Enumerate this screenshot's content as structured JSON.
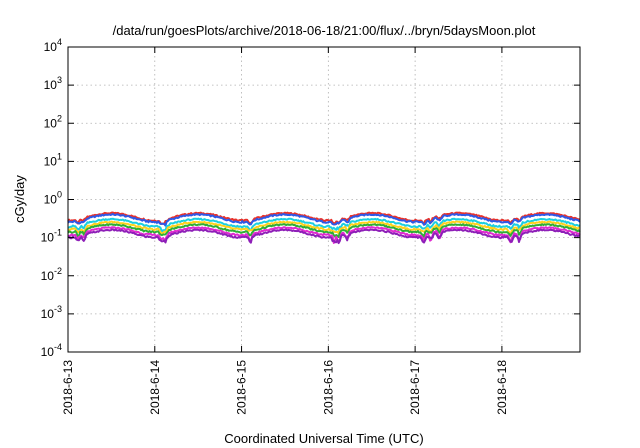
{
  "chart_data": {
    "type": "line",
    "title": "/data/run/goesPlots/archive/2018-06-18/21:00/flux/../bryn/5daysMoon.plot",
    "xlabel": "Coordinated Universal Time (UTC)",
    "ylabel": "cGy/day",
    "yscale": "log",
    "ylim": [
      0.0001,
      10000
    ],
    "xlim": [
      0,
      5.9
    ],
    "grid": true,
    "y_ticks": [
      {
        "value": 0.0001,
        "base": "10",
        "exp": "-4"
      },
      {
        "value": 0.001,
        "base": "10",
        "exp": "-3"
      },
      {
        "value": 0.01,
        "base": "10",
        "exp": "-2"
      },
      {
        "value": 0.1,
        "base": "10",
        "exp": "-1"
      },
      {
        "value": 1,
        "base": "10",
        "exp": "0"
      },
      {
        "value": 10,
        "base": "10",
        "exp": "1"
      },
      {
        "value": 100,
        "base": "10",
        "exp": "2"
      },
      {
        "value": 1000,
        "base": "10",
        "exp": "3"
      },
      {
        "value": 10000,
        "base": "10",
        "exp": "4"
      }
    ],
    "x_ticks": [
      {
        "value": 0,
        "label": "2018-6-13"
      },
      {
        "value": 1,
        "label": "2018-6-14"
      },
      {
        "value": 2,
        "label": "2018-6-15"
      },
      {
        "value": 3,
        "label": "2018-6-16"
      },
      {
        "value": 4,
        "label": "2018-6-17"
      },
      {
        "value": 5,
        "label": "2018-6-18"
      }
    ],
    "series": [
      {
        "color": "#e8322b",
        "base": 0.36,
        "spread": 0.22
      },
      {
        "color": "#2f58e6",
        "base": 0.33,
        "spread": 0.22
      },
      {
        "color": "#1ccfe0",
        "base": 0.25,
        "spread": 0.24
      },
      {
        "color": "#ffd21c",
        "base": 0.21,
        "spread": 0.26
      },
      {
        "color": "#2fae35",
        "base": 0.18,
        "spread": 0.28
      },
      {
        "color": "#e02bd0",
        "base": 0.15,
        "spread": 0.4
      },
      {
        "color": "#8e1fb8",
        "base": 0.13,
        "spread": 0.32
      }
    ]
  }
}
